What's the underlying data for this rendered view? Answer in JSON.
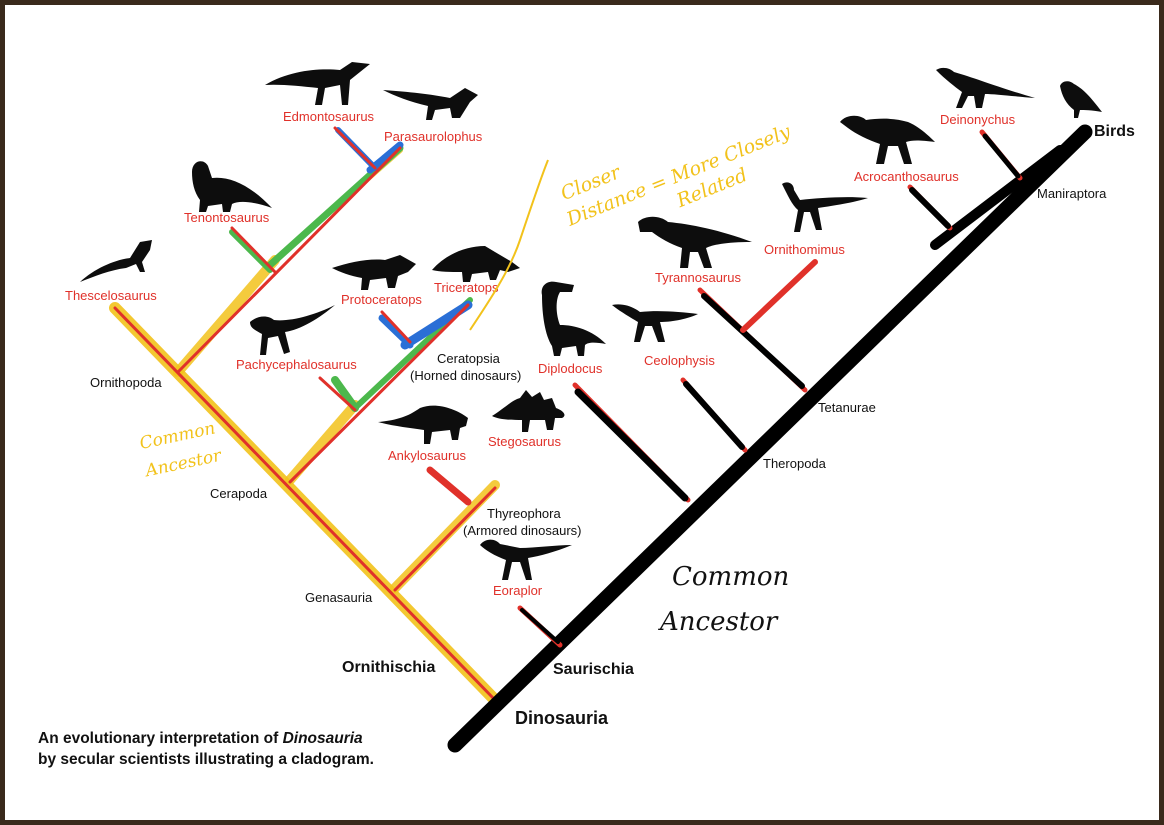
{
  "labels": {
    "edmontosaurus": "Edmontosaurus",
    "parasaurolophus": "Parasaurolophus",
    "tenontosaurus": "Tenontosaurus",
    "thescelosaurus": "Thescelosaurus",
    "protoceratops": "Protoceratops",
    "triceratops": "Triceratops",
    "pachycephalosaurus": "Pachycephalosaurus",
    "ceratopsia": "Ceratopsia",
    "ceratopsia_sub": "(Horned dinosaurs)",
    "ornithopoda": "Ornithopoda",
    "ankylosaurus": "Ankylosaurus",
    "stegosaurus": "Stegosaurus",
    "cerapoda": "Cerapoda",
    "thyreophora": "Thyreophora",
    "thyreophora_sub": "(Armored dinosaurs)",
    "genasauria": "Genasauria",
    "eoraptor": "Eoraplor",
    "ornithischia": "Ornithischia",
    "saurischia": "Saurischia",
    "dinosauria": "Dinosauria",
    "diplodocus": "Diplodocus",
    "ceolophysis": "Ceolophysis",
    "tyrannosaurus": "Tyrannosaurus",
    "ornithomimus": "Ornithomimus",
    "acrocanthosaurus": "Acrocanthosaurus",
    "deinonychus": "Deinonychus",
    "birds": "Birds",
    "maniraptora": "Maniraptora",
    "tetanurae": "Tetanurae",
    "theropoda": "Theropoda"
  },
  "handwritten": {
    "closer_1": "Closer",
    "closer_2": "Distance = More Closely",
    "closer_3": "Related",
    "common_yellow_1": "Common",
    "common_yellow_2": "Ancestor",
    "common_black_1": "Common",
    "common_black_2": "Ancestor"
  },
  "caption": {
    "line1_pre": "An evolutionary interpretation of ",
    "line1_italic": "Dinosauria",
    "line2": "by secular scientists illustrating a cladogram."
  },
  "colors": {
    "tree_red": "#e0312a",
    "highlight_yellow": "#f2c21b",
    "highlight_green": "#4cb84c",
    "highlight_blue": "#2a6fd6",
    "highlight_black": "#000000",
    "frame": "#3a2a1c"
  }
}
